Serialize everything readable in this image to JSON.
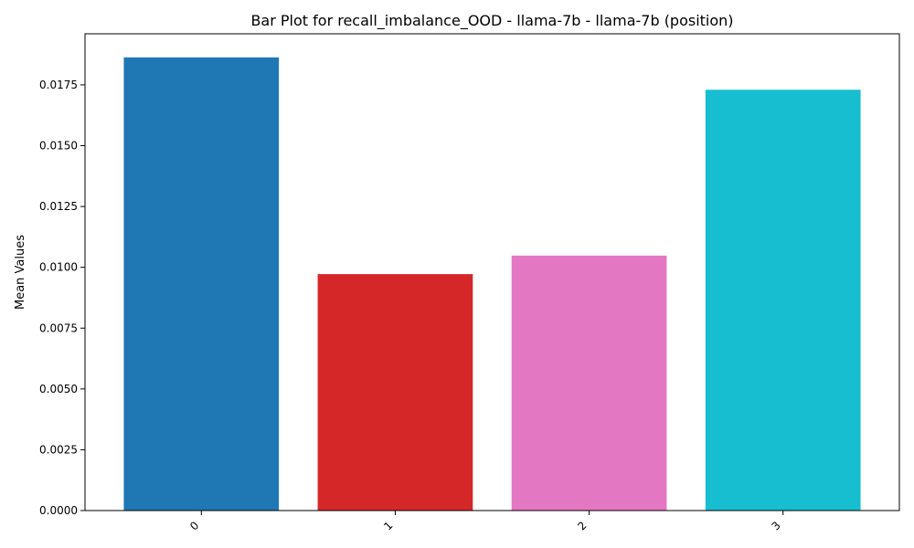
{
  "chart_data": {
    "type": "bar",
    "title": "Bar Plot for recall_imbalance_OOD - llama-7b - llama-7b (position)",
    "xlabel": "",
    "ylabel": "Mean Values",
    "categories": [
      "0",
      "1",
      "2",
      "3"
    ],
    "values": [
      0.01863,
      0.00972,
      0.01048,
      0.0173
    ],
    "colors": [
      "#1f77b4",
      "#d62728",
      "#e377c2",
      "#17becf"
    ],
    "ylim": [
      0,
      0.0196
    ],
    "yticks": [
      "0.0000",
      "0.0025",
      "0.0050",
      "0.0075",
      "0.0100",
      "0.0125",
      "0.0150",
      "0.0175"
    ],
    "grid": false,
    "legend": "none"
  }
}
